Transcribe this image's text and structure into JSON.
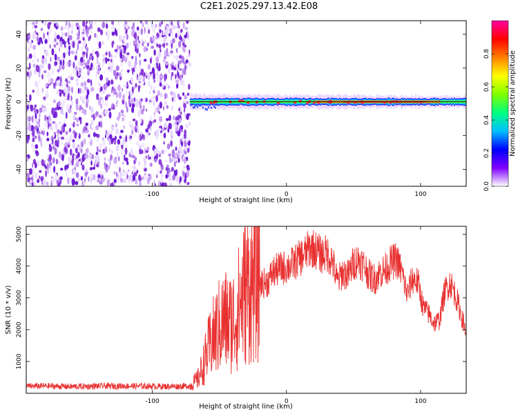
{
  "title": "C2E1.2025.297.13.42.E08",
  "chart_data": [
    {
      "type": "heatmap",
      "name": "spectrogram",
      "xlabel": "Height of straight line (km)",
      "ylabel": "Frequency (Hz)",
      "xlim": [
        -194,
        134
      ],
      "ylim": [
        -50,
        48
      ],
      "xticks": [
        -100,
        0,
        100
      ],
      "yticks": [
        -40,
        -20,
        0,
        20,
        40
      ],
      "noise_region_x": [
        -194,
        -72
      ],
      "signal_ridge_frequency": 0,
      "colorbar": {
        "label": "Normalized spectral amplitude",
        "range": [
          0.0,
          1.0
        ],
        "ticks": [
          "0.0",
          "0.2",
          "0.4",
          "0.6",
          "0.8"
        ],
        "tick_values": [
          0.0,
          0.2,
          0.4,
          0.6,
          0.8
        ],
        "colors": [
          "#ffffff",
          "#8000ff",
          "#0000ff",
          "#00c0ff",
          "#00ff80",
          "#80ff00",
          "#ffff00",
          "#ff8000",
          "#ff0000",
          "#ff00a0"
        ]
      }
    },
    {
      "type": "line",
      "name": "snr",
      "xlabel": "Height of straight line (km)",
      "ylabel": "SNR (10 * v/v)",
      "xlim": [
        -194,
        134
      ],
      "ylim": [
        0,
        5250
      ],
      "xticks": [
        -100,
        0,
        100
      ],
      "yticks": [
        1000,
        2000,
        3000,
        4000,
        5000
      ],
      "color": "#e8302f",
      "series": {
        "x": [
          -194,
          -180,
          -160,
          -140,
          -120,
          -100,
          -85,
          -72,
          -66,
          -62,
          -58,
          -54,
          -50,
          -46,
          -42,
          -38,
          -34,
          -30,
          -26,
          -22,
          -18,
          -14,
          -10,
          -6,
          -2,
          2,
          6,
          10,
          14,
          18,
          22,
          26,
          30,
          34,
          38,
          42,
          46,
          50,
          54,
          58,
          62,
          66,
          70,
          74,
          78,
          82,
          86,
          90,
          94,
          98,
          102,
          106,
          110,
          114,
          118,
          122,
          126,
          130,
          134
        ],
        "y": [
          220,
          230,
          210,
          225,
          230,
          220,
          215,
          230,
          450,
          900,
          1400,
          1800,
          2100,
          2300,
          2200,
          2400,
          2900,
          3300,
          3400,
          3500,
          3450,
          3500,
          3800,
          3900,
          3950,
          4000,
          4100,
          4250,
          4400,
          4600,
          4500,
          4350,
          4400,
          4200,
          3500,
          3800,
          3700,
          4100,
          4200,
          4000,
          3700,
          3600,
          3800,
          3900,
          4100,
          4200,
          3800,
          3100,
          3600,
          3500,
          2700,
          2500,
          2200,
          2300,
          3200,
          3500,
          3100,
          2500,
          1900
        ]
      }
    }
  ]
}
